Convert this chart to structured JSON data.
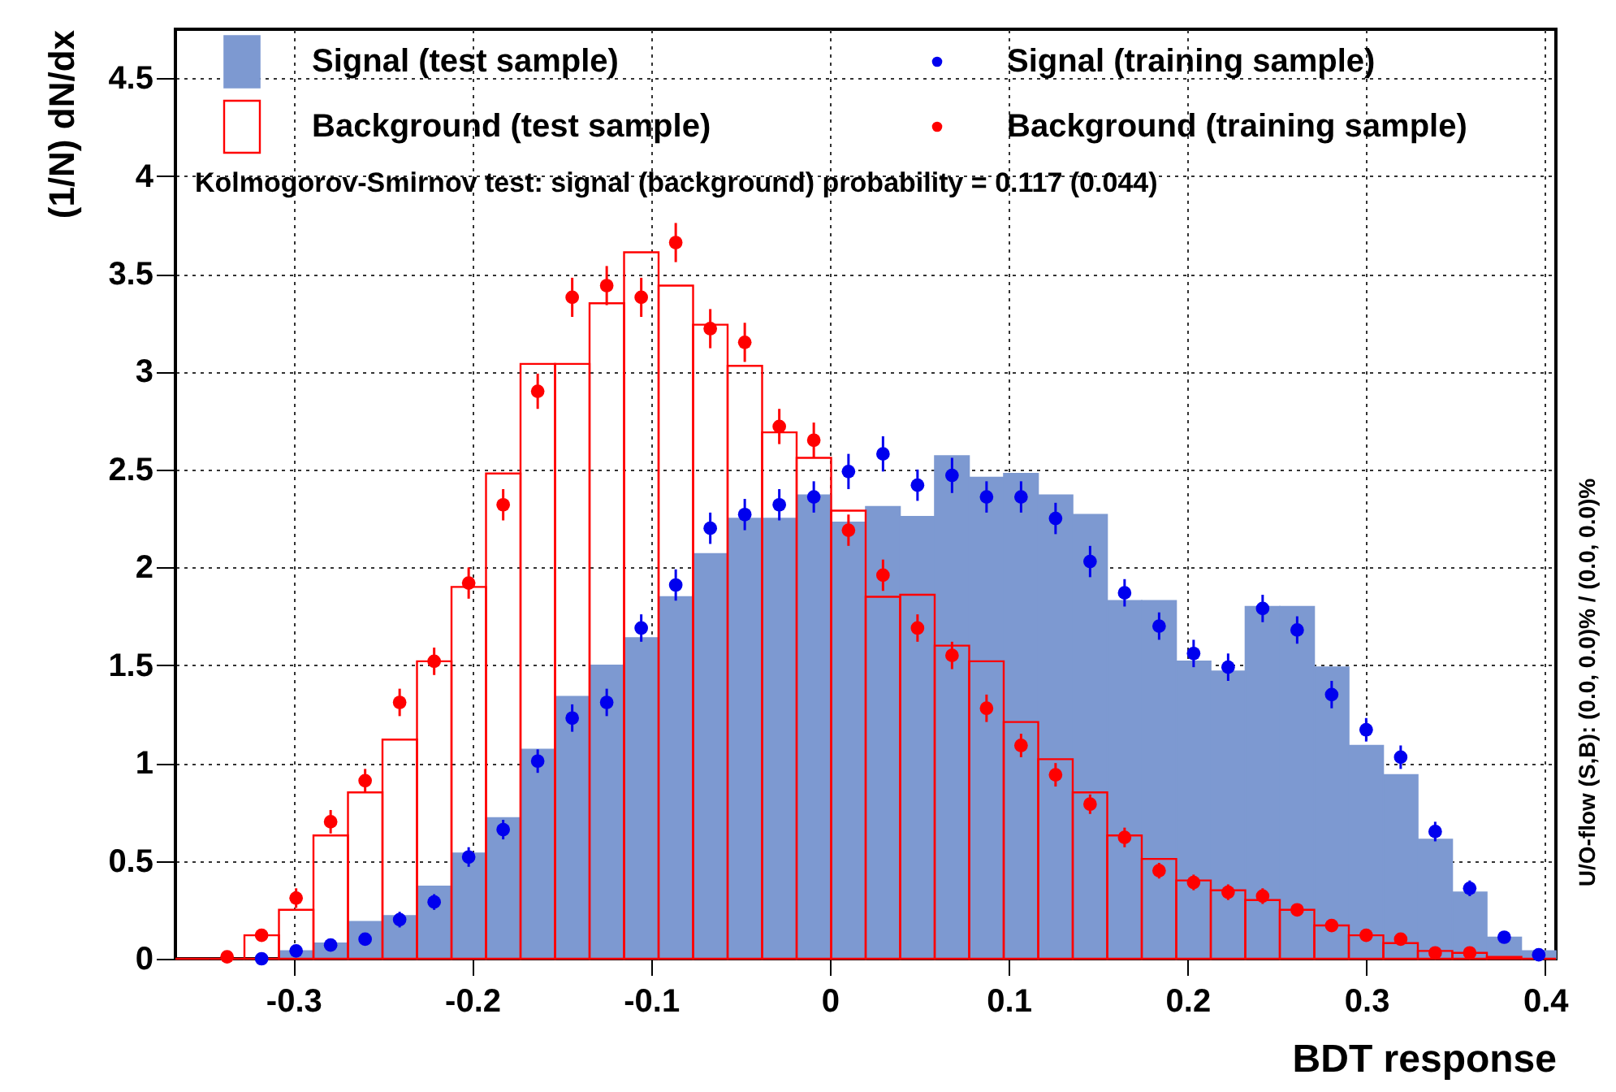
{
  "chart_data": {
    "type": "histogram",
    "xlabel": "BDT response",
    "ylabel": "(1/N) dN/dx",
    "bins": [
      -0.366,
      -0.3467,
      -0.3274,
      -0.3081,
      -0.2888,
      -0.2695,
      -0.2502,
      -0.2309,
      -0.2116,
      -0.1923,
      -0.173,
      -0.1537,
      -0.1344,
      -0.1151,
      -0.0958,
      -0.0765,
      -0.0572,
      -0.0379,
      -0.0186,
      0.0007,
      0.02,
      0.0393,
      0.0586,
      0.0779,
      0.0972,
      0.1165,
      0.1358,
      0.1551,
      0.1744,
      0.1937,
      0.213,
      0.2323,
      0.2516,
      0.2709,
      0.2902,
      0.3095,
      0.3288,
      0.3481,
      0.3674,
      0.3867,
      0.406
    ],
    "series": [
      {
        "name": "Signal (test sample)",
        "type": "histogram",
        "color": "#7d99d1",
        "values": [
          0,
          0,
          0,
          0.04,
          0.08,
          0.19,
          0.22,
          0.37,
          0.54,
          0.72,
          1.07,
          1.34,
          1.5,
          1.64,
          1.85,
          2.07,
          2.25,
          2.25,
          2.37,
          2.23,
          2.31,
          2.26,
          2.57,
          2.46,
          2.48,
          2.37,
          2.27,
          1.83,
          1.83,
          1.52,
          1.47,
          1.8,
          1.8,
          1.49,
          1.09,
          0.94,
          0.61,
          0.34,
          0.11,
          0.04
        ]
      },
      {
        "name": "Background (test sample)",
        "type": "histogram",
        "color": "#ff0000",
        "values": [
          0,
          0,
          0.12,
          0.25,
          0.63,
          0.85,
          1.12,
          1.52,
          1.9,
          2.48,
          3.04,
          3.04,
          3.35,
          3.61,
          3.44,
          3.24,
          3.03,
          2.69,
          2.56,
          2.29,
          1.85,
          1.86,
          1.6,
          1.52,
          1.21,
          1.02,
          0.85,
          0.63,
          0.51,
          0.4,
          0.35,
          0.3,
          0.25,
          0.17,
          0.12,
          0.08,
          0.04,
          0.03,
          0.01,
          0
        ]
      },
      {
        "name": "Signal (training sample)",
        "type": "scatter",
        "color": "#0000ee",
        "x": [
          -0.3178,
          -0.2985,
          -0.2792,
          -0.2599,
          -0.2406,
          -0.2213,
          -0.202,
          -0.1827,
          -0.1634,
          -0.1441,
          -0.1248,
          -0.1055,
          -0.0862,
          -0.0669,
          -0.0476,
          -0.0283,
          -0.009,
          0.0104,
          0.0297,
          0.049,
          0.0683,
          0.0876,
          0.1069,
          0.1262,
          0.1455,
          0.1648,
          0.1841,
          0.2034,
          0.2227,
          0.242,
          0.2613,
          0.2806,
          0.2999,
          0.3192,
          0.3385,
          0.3578,
          0.3771,
          0.3964
        ],
        "values": [
          0.0,
          0.04,
          0.07,
          0.1,
          0.2,
          0.29,
          0.52,
          0.66,
          1.01,
          1.23,
          1.31,
          1.69,
          1.91,
          2.2,
          2.27,
          2.32,
          2.36,
          2.49,
          2.58,
          2.42,
          2.47,
          2.36,
          2.36,
          2.25,
          2.03,
          1.87,
          1.7,
          1.56,
          1.49,
          1.79,
          1.68,
          1.35,
          1.17,
          1.03,
          0.65,
          0.36,
          0.11,
          0.02
        ],
        "errors": [
          0.02,
          0.02,
          0.03,
          0.03,
          0.04,
          0.04,
          0.05,
          0.05,
          0.06,
          0.07,
          0.07,
          0.07,
          0.08,
          0.08,
          0.08,
          0.08,
          0.08,
          0.09,
          0.09,
          0.08,
          0.09,
          0.08,
          0.08,
          0.08,
          0.08,
          0.07,
          0.07,
          0.07,
          0.07,
          0.07,
          0.07,
          0.07,
          0.06,
          0.06,
          0.05,
          0.04,
          0.03,
          0.02
        ]
      },
      {
        "name": "Background (training sample)",
        "type": "scatter",
        "color": "#ff0000",
        "x": [
          -0.3371,
          -0.3178,
          -0.2985,
          -0.2792,
          -0.2599,
          -0.2406,
          -0.2213,
          -0.202,
          -0.1827,
          -0.1634,
          -0.1441,
          -0.1248,
          -0.1055,
          -0.0862,
          -0.0669,
          -0.0476,
          -0.0283,
          -0.009,
          0.0104,
          0.0297,
          0.049,
          0.0683,
          0.0876,
          0.1069,
          0.1262,
          0.1455,
          0.1648,
          0.1841,
          0.2034,
          0.2227,
          0.242,
          0.2613,
          0.2806,
          0.2999,
          0.3192,
          0.3385,
          0.3578
        ],
        "values": [
          0.01,
          0.12,
          0.31,
          0.7,
          0.91,
          1.31,
          1.52,
          1.92,
          2.32,
          2.9,
          3.38,
          3.44,
          3.38,
          3.66,
          3.22,
          3.15,
          2.72,
          2.65,
          2.19,
          1.96,
          1.69,
          1.55,
          1.28,
          1.09,
          0.94,
          0.79,
          0.62,
          0.45,
          0.39,
          0.34,
          0.32,
          0.25,
          0.17,
          0.12,
          0.1,
          0.03,
          0.03
        ],
        "errors": [
          0.02,
          0.03,
          0.05,
          0.06,
          0.06,
          0.07,
          0.07,
          0.08,
          0.08,
          0.09,
          0.1,
          0.1,
          0.1,
          0.1,
          0.1,
          0.1,
          0.09,
          0.09,
          0.08,
          0.08,
          0.07,
          0.07,
          0.07,
          0.06,
          0.06,
          0.05,
          0.05,
          0.04,
          0.04,
          0.04,
          0.04,
          0.03,
          0.03,
          0.03,
          0.02,
          0.02,
          0.02
        ]
      }
    ],
    "xlim": [
      -0.366,
      0.406
    ],
    "xticks": [
      -0.3,
      -0.2,
      -0.1,
      {
        "value": 0,
        "label": "0"
      },
      0.1,
      0.2,
      0.3,
      0.4
    ],
    "ylim": [
      0,
      4.75
    ],
    "yticks": [
      {
        "value": 0,
        "label": "0"
      },
      0.5,
      {
        "value": 1,
        "label": "1"
      },
      1.5,
      {
        "value": 2,
        "label": "2"
      },
      2.5,
      {
        "value": 3,
        "label": "3"
      },
      3.5,
      {
        "value": 4,
        "label": "4"
      },
      4.5
    ],
    "grid": true,
    "legend": "top",
    "marker": "circle",
    "annotations": [
      "Kolmogorov-Smirnov test: signal (background) probability = 0.117 (0.044)",
      "U/O-flow (S,B): (0.0, 0.0)% / (0.0, 0.0)%"
    ]
  }
}
